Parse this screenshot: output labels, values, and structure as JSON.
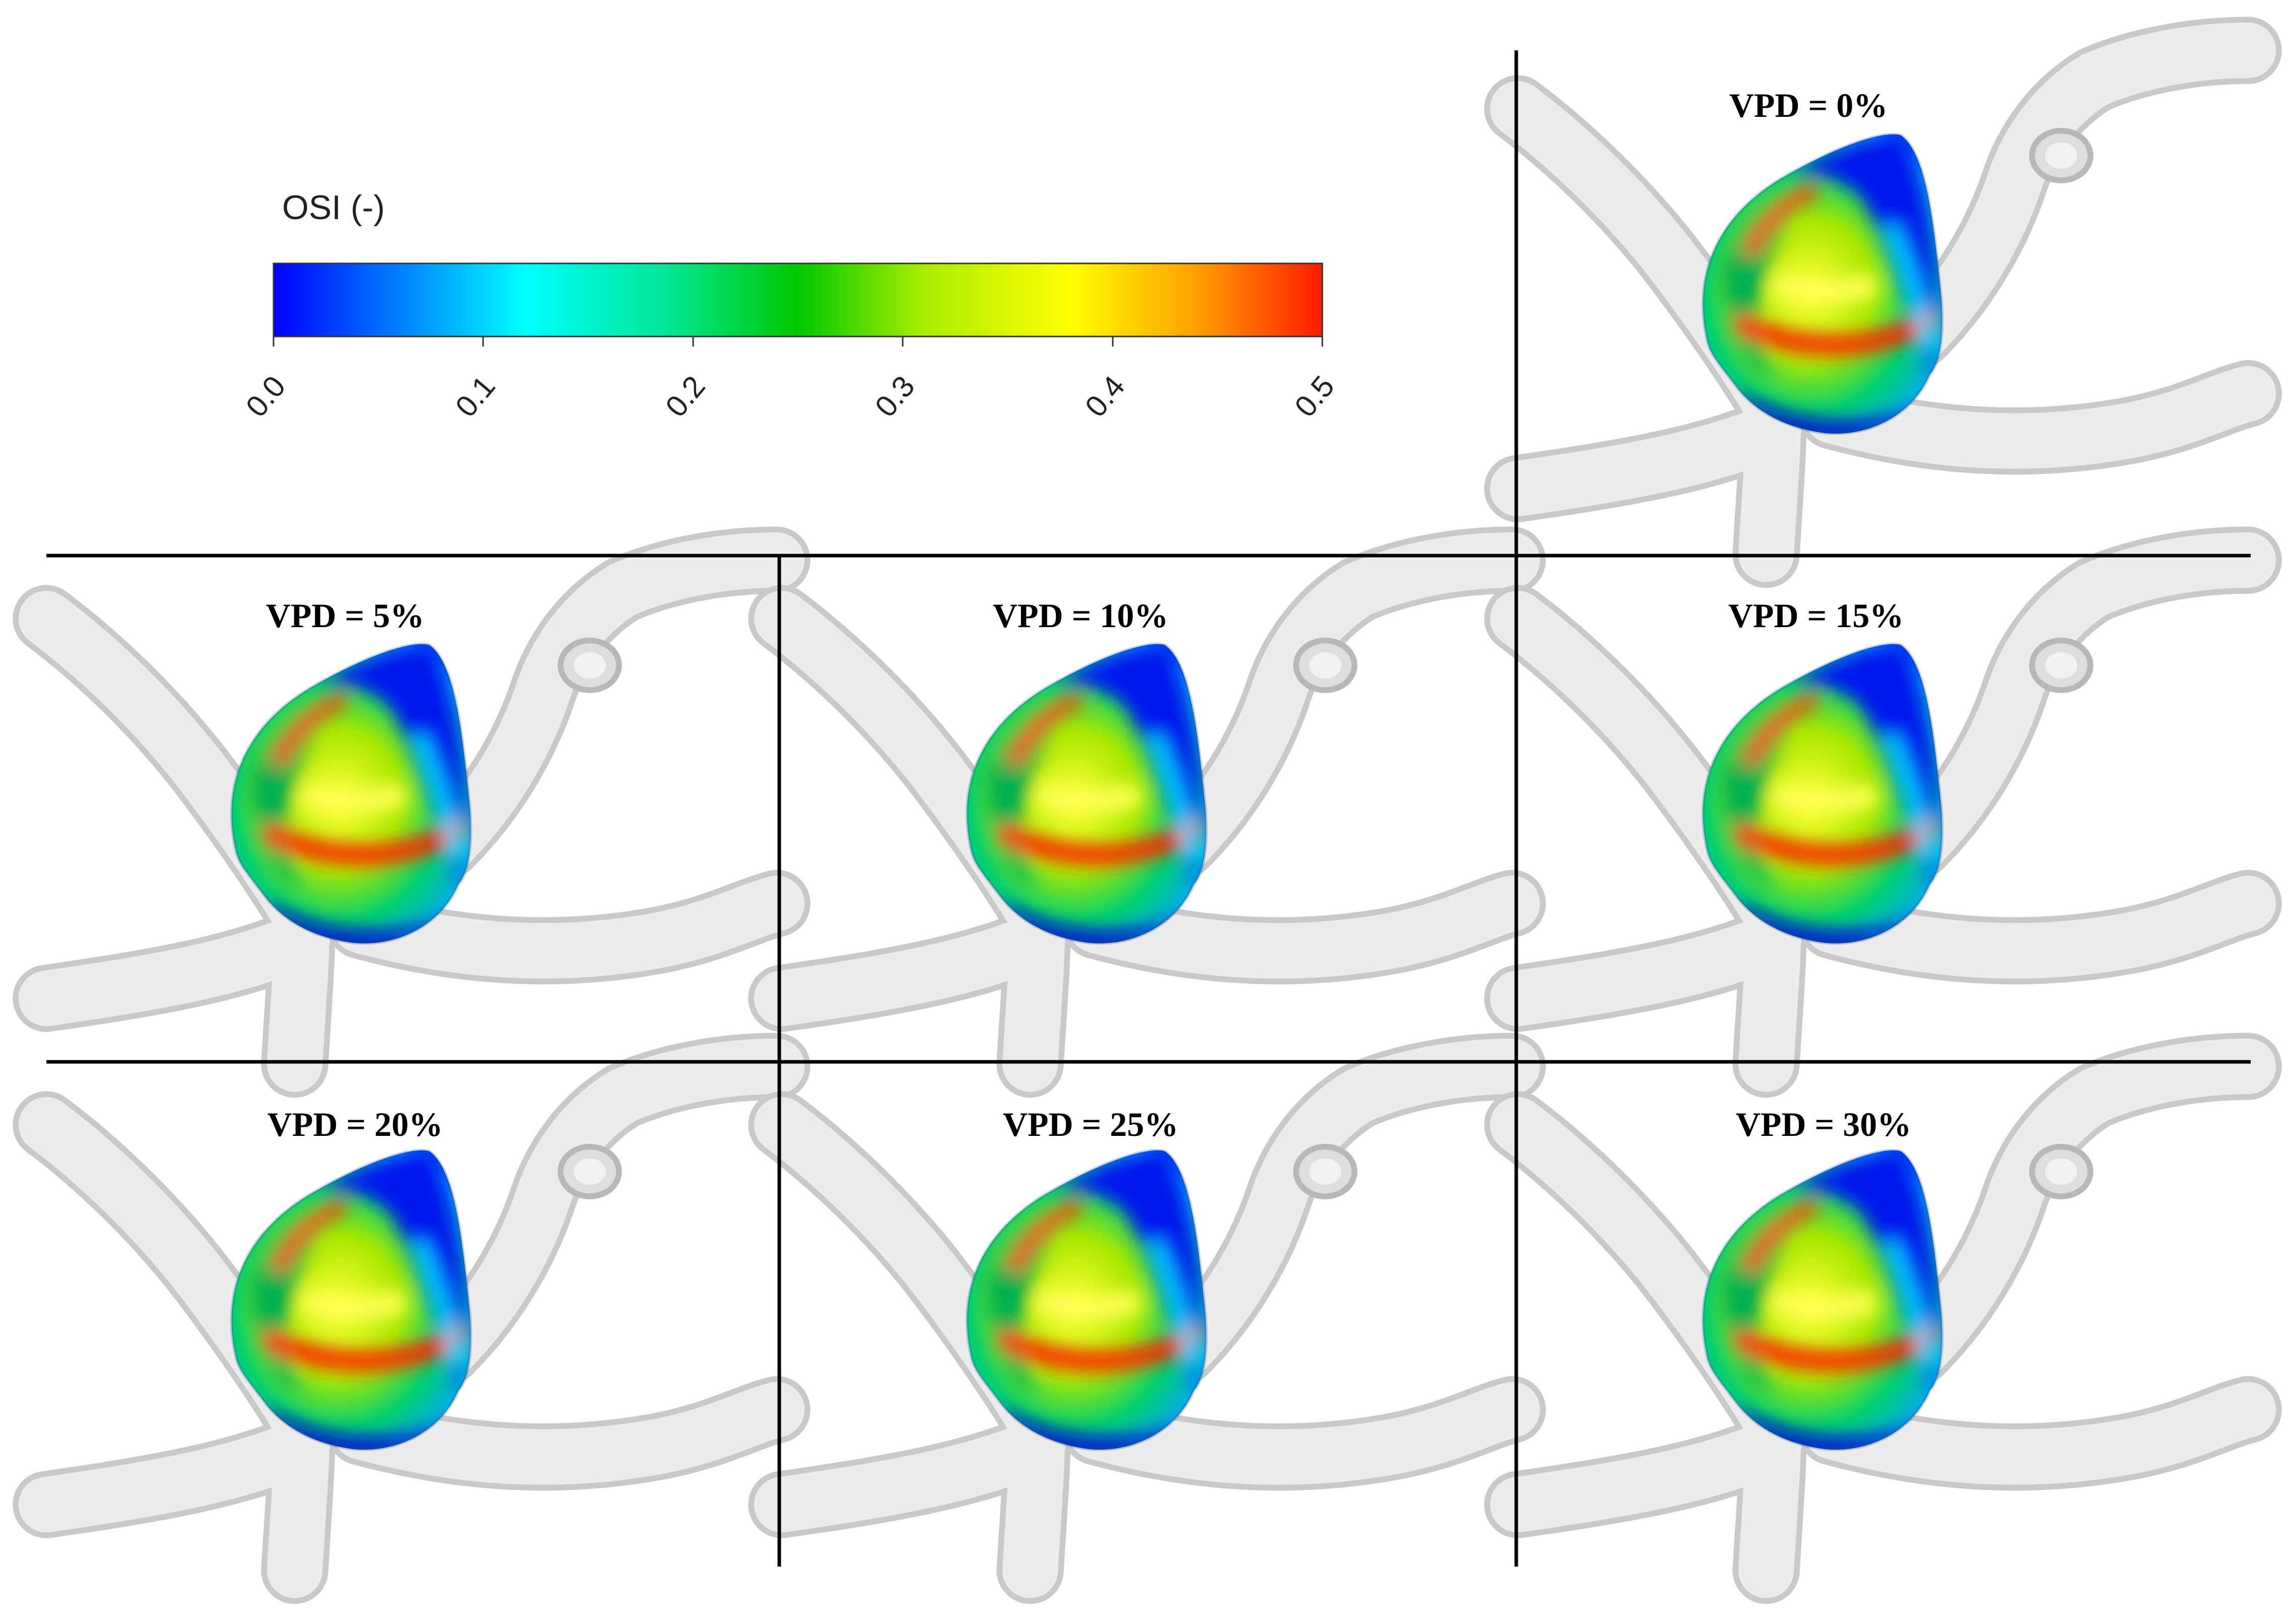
{
  "figure": {
    "legend": {
      "title": "OSI (-)",
      "ticks": [
        "0.0",
        "0.1",
        "0.2",
        "0.3",
        "0.4",
        "0.5"
      ],
      "colors": [
        "#0000ff",
        "#00aaff",
        "#00ffff",
        "#00e07a",
        "#00c800",
        "#a8e800",
        "#ffff00",
        "#ffa500",
        "#ff0000"
      ]
    },
    "panels": [
      {
        "label": "VPD = 0%"
      },
      {
        "label": "VPD = 5%"
      },
      {
        "label": "VPD = 10%"
      },
      {
        "label": "VPD = 15%"
      },
      {
        "label": "VPD = 20%"
      },
      {
        "label": "VPD = 25%"
      },
      {
        "label": "VPD = 30%"
      }
    ]
  }
}
